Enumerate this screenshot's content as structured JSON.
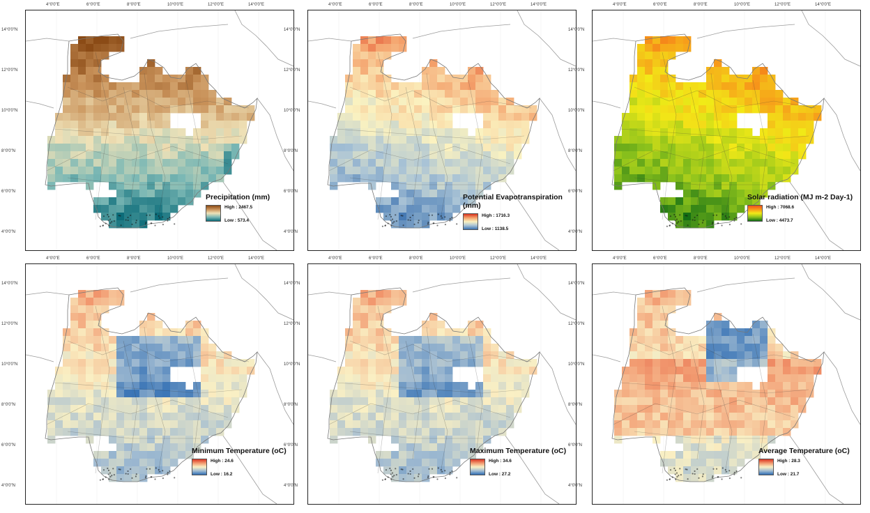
{
  "x_ticks": [
    "4°0'0\"E",
    "6°0'0\"E",
    "8°0'0\"E",
    "10°0'0\"E",
    "12°0'0\"E",
    "14°0'0\"E"
  ],
  "y_ticks": [
    "14°0'0\"N",
    "12°0'0\"N",
    "10°0'0\"N",
    "8°0'0\"N",
    "6°0'0\"N",
    "4°0'0\"N"
  ],
  "panels": [
    {
      "id": "precipitation",
      "title": "Precipitation (mm)",
      "high": "High : 2467.5",
      "low": "Low : 573.4",
      "colors": [
        "#8b4b16",
        "#c9925a",
        "#efe2b8",
        "#7bb8b5",
        "#0c6c79"
      ],
      "pattern": "precip"
    },
    {
      "id": "pet",
      "title": "Potential Evapotranspiration (mm)",
      "high": "High : 1716.3",
      "low": "Low : 1138.5",
      "colors": [
        "#d9341f",
        "#f4a06a",
        "#fbf2c0",
        "#a9c3d6",
        "#3c72b0"
      ],
      "pattern": "pet"
    },
    {
      "id": "solar",
      "title": "Solar radiation (MJ m-2 Day-1)",
      "high": "High : 7068.6",
      "low": "Low : 4473.7",
      "colors": [
        "#f0501b",
        "#f79a1a",
        "#f2ea17",
        "#8cc21c",
        "#0f6b14"
      ],
      "pattern": "solar"
    },
    {
      "id": "tmin",
      "title": "Minimum Temperature (oC)",
      "high": "High : 24.6",
      "low": "Low : 16.2",
      "colors": [
        "#d83523",
        "#f29a70",
        "#faf0c4",
        "#a2bcd2",
        "#2f6db3"
      ],
      "pattern": "tmin"
    },
    {
      "id": "tmax",
      "title": "Maximum Temperature (oC)",
      "high": "High : 34.6",
      "low": "Low : 27.2",
      "colors": [
        "#d83523",
        "#f29a70",
        "#faf0c4",
        "#a2bcd2",
        "#2f6db3"
      ],
      "pattern": "tmax"
    },
    {
      "id": "tavg",
      "title": "Average Temperature (oC)",
      "high": "High : 28.3",
      "low": "Low : 21.7",
      "colors": [
        "#d83523",
        "#f29a70",
        "#faf0c4",
        "#a2bcd2",
        "#2f6db3"
      ],
      "pattern": "tavg"
    }
  ]
}
